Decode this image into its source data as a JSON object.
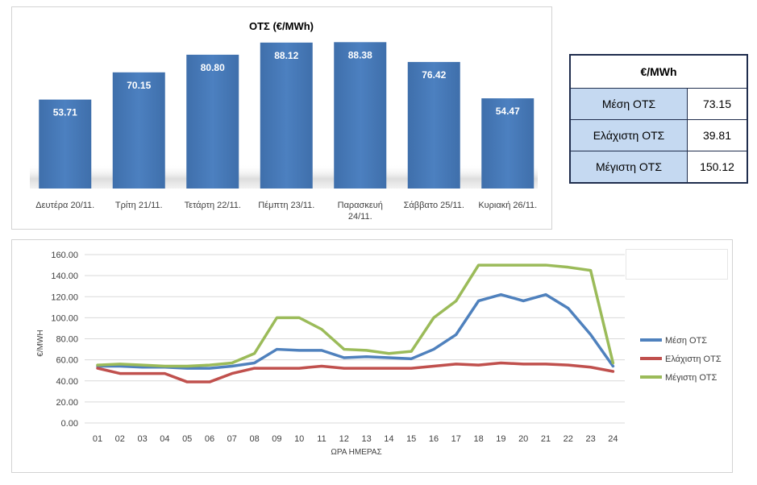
{
  "chart_data": [
    {
      "type": "bar",
      "title": "ΟΤΣ (€/MWh)",
      "categories": [
        "Δευτέρα 20/11.",
        "Τρίτη 21/11.",
        "Τετάρτη 22/11.",
        "Πέμπτη 23/11.",
        "Παρασκευή 24/11.",
        "Σάββατο 25/11.",
        "Κυριακή 26/11."
      ],
      "values": [
        53.71,
        70.15,
        80.8,
        88.12,
        88.38,
        76.42,
        54.47
      ],
      "value_labels": [
        "53.71",
        "70.15",
        "80.80",
        "88.12",
        "88.38",
        "76.42",
        "54.47"
      ],
      "bar_color": "#4a7ebb",
      "ylim": [
        0,
        90
      ]
    },
    {
      "type": "line",
      "xlabel": "ΩΡΑ ΗΜΕΡΑΣ",
      "ylabel": "€/MWH",
      "x": [
        "01",
        "02",
        "03",
        "04",
        "05",
        "06",
        "07",
        "08",
        "09",
        "10",
        "11",
        "12",
        "13",
        "14",
        "15",
        "16",
        "17",
        "18",
        "19",
        "20",
        "21",
        "22",
        "23",
        "24"
      ],
      "y_ticks": [
        "0.00",
        "20.00",
        "40.00",
        "60.00",
        "80.00",
        "100.00",
        "120.00",
        "140.00",
        "160.00"
      ],
      "ylim": [
        0,
        160
      ],
      "grid": true,
      "legend_position": "right",
      "series": [
        {
          "name": "Μέση ΟΤΣ",
          "color": "#4f81bd",
          "values": [
            54,
            54,
            53,
            53,
            52,
            52,
            54,
            57,
            70,
            69,
            69,
            62,
            63,
            62,
            61,
            70,
            84,
            116,
            122,
            116,
            122,
            109,
            84,
            54
          ]
        },
        {
          "name": "Ελάχιστη ΟΤΣ",
          "color": "#c0504d",
          "values": [
            52,
            47,
            47,
            47,
            39,
            39,
            47,
            52,
            52,
            52,
            54,
            52,
            52,
            52,
            52,
            54,
            56,
            55,
            57,
            56,
            56,
            55,
            53,
            49
          ]
        },
        {
          "name": "Μέγιστη ΟΤΣ",
          "color": "#9bbb59",
          "values": [
            55,
            56,
            55,
            54,
            54,
            55,
            57,
            66,
            100,
            100,
            89,
            70,
            69,
            66,
            68,
            100,
            116,
            150,
            150,
            150,
            150,
            148,
            145,
            57
          ]
        }
      ]
    }
  ],
  "stats_table": {
    "header": "€/MWh",
    "rows": [
      {
        "label": "Μέση ΟΤΣ",
        "value": "73.15"
      },
      {
        "label": "Ελάχιστη ΟΤΣ",
        "value": "39.81"
      },
      {
        "label": "Μέγιστη ΟΤΣ",
        "value": "150.12"
      }
    ]
  }
}
